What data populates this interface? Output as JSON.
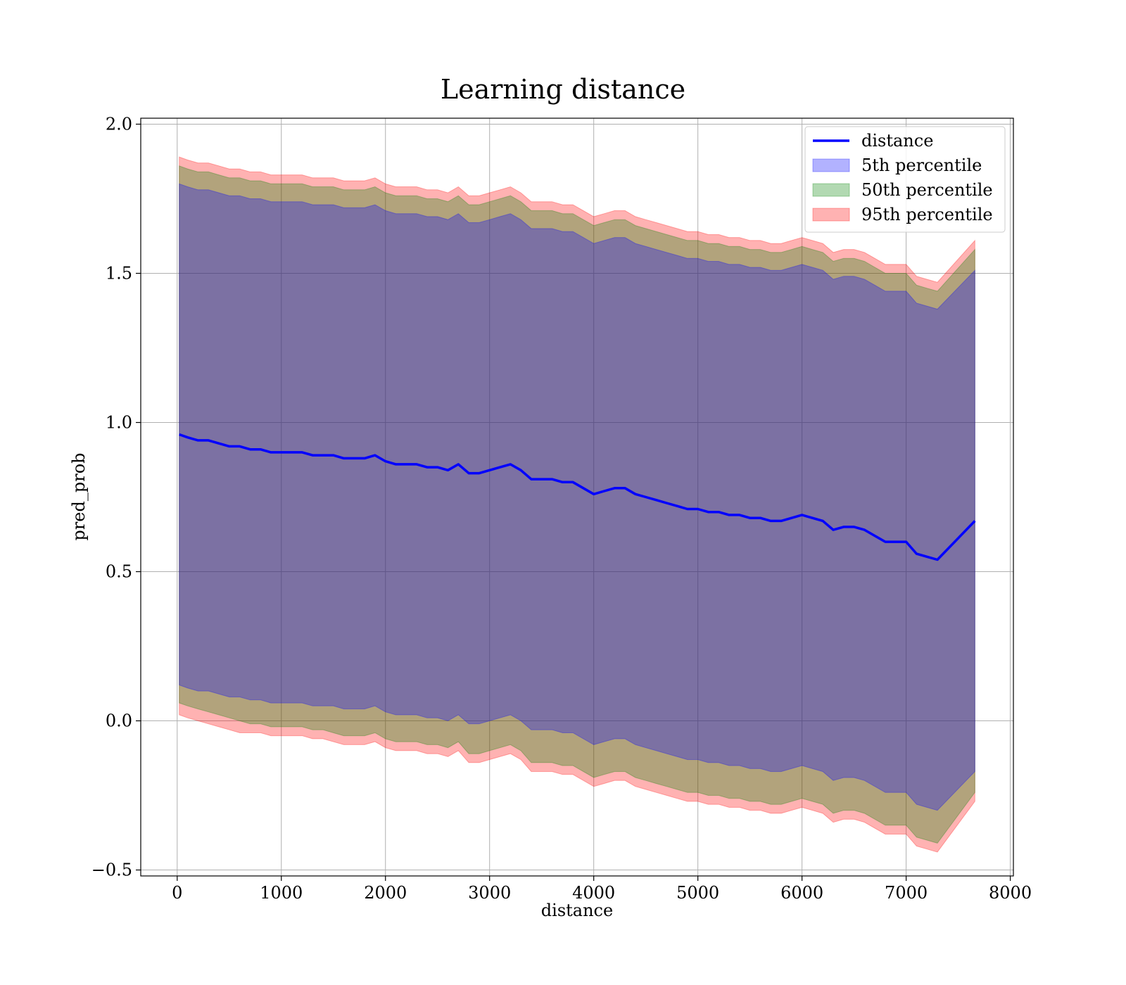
{
  "chart_data": {
    "type": "area",
    "title": "Learning distance",
    "xlabel": "distance",
    "ylabel": "pred_prob",
    "xlim": [
      -350,
      8030
    ],
    "ylim": [
      -0.52,
      2.02
    ],
    "x_ticks": [
      0,
      1000,
      2000,
      3000,
      4000,
      5000,
      6000,
      7000,
      8000
    ],
    "x_tick_labels": [
      "0",
      "1000",
      "2000",
      "3000",
      "4000",
      "5000",
      "6000",
      "7000",
      "8000"
    ],
    "y_ticks": [
      -0.5,
      0.0,
      0.5,
      1.0,
      1.5,
      2.0
    ],
    "y_tick_labels": [
      "−0.5",
      "0.0",
      "0.5",
      "1.0",
      "1.5",
      "2.0"
    ],
    "grid": true,
    "legend_position": "top-right",
    "colors": {
      "line": "#0000ff",
      "p5": "#0000ff",
      "p50": "#008000",
      "p95": "#ff0000"
    },
    "x": [
      20,
      100,
      200,
      300,
      400,
      500,
      600,
      700,
      800,
      900,
      1000,
      1100,
      1200,
      1300,
      1400,
      1500,
      1600,
      1700,
      1800,
      1900,
      2000,
      2100,
      2200,
      2300,
      2400,
      2500,
      2600,
      2700,
      2800,
      2900,
      3000,
      3100,
      3200,
      3300,
      3400,
      3500,
      3600,
      3700,
      3800,
      3900,
      4000,
      4100,
      4200,
      4300,
      4400,
      4500,
      4600,
      4700,
      4800,
      4900,
      5000,
      5100,
      5200,
      5300,
      5400,
      5500,
      5600,
      5700,
      5800,
      5900,
      6000,
      6100,
      6200,
      6300,
      6400,
      6500,
      6600,
      6700,
      6800,
      6900,
      7000,
      7100,
      7200,
      7300,
      7660
    ],
    "series": [
      {
        "name": "distance",
        "kind": "line",
        "values": [
          0.96,
          0.95,
          0.94,
          0.94,
          0.93,
          0.92,
          0.92,
          0.91,
          0.91,
          0.9,
          0.9,
          0.9,
          0.9,
          0.89,
          0.89,
          0.89,
          0.88,
          0.88,
          0.88,
          0.89,
          0.87,
          0.86,
          0.86,
          0.86,
          0.85,
          0.85,
          0.84,
          0.86,
          0.83,
          0.83,
          0.84,
          0.85,
          0.86,
          0.84,
          0.81,
          0.81,
          0.81,
          0.8,
          0.8,
          0.78,
          0.76,
          0.77,
          0.78,
          0.78,
          0.76,
          0.75,
          0.74,
          0.73,
          0.72,
          0.71,
          0.71,
          0.7,
          0.7,
          0.69,
          0.69,
          0.68,
          0.68,
          0.67,
          0.67,
          0.68,
          0.69,
          0.68,
          0.67,
          0.64,
          0.65,
          0.65,
          0.64,
          0.62,
          0.6,
          0.6,
          0.6,
          0.56,
          0.55,
          0.54,
          0.67
        ]
      },
      {
        "name": "5th percentile",
        "kind": "band",
        "lower": [
          0.12,
          0.11,
          0.1,
          0.1,
          0.09,
          0.08,
          0.08,
          0.07,
          0.07,
          0.06,
          0.06,
          0.06,
          0.06,
          0.05,
          0.05,
          0.05,
          0.04,
          0.04,
          0.04,
          0.05,
          0.03,
          0.02,
          0.02,
          0.02,
          0.01,
          0.01,
          0.0,
          0.02,
          -0.01,
          -0.01,
          0.0,
          0.01,
          0.02,
          0.0,
          -0.03,
          -0.03,
          -0.03,
          -0.04,
          -0.04,
          -0.06,
          -0.08,
          -0.07,
          -0.06,
          -0.06,
          -0.08,
          -0.09,
          -0.1,
          -0.11,
          -0.12,
          -0.13,
          -0.13,
          -0.14,
          -0.14,
          -0.15,
          -0.15,
          -0.16,
          -0.16,
          -0.17,
          -0.17,
          -0.16,
          -0.15,
          -0.16,
          -0.17,
          -0.2,
          -0.19,
          -0.19,
          -0.2,
          -0.22,
          -0.24,
          -0.24,
          -0.24,
          -0.28,
          -0.29,
          -0.3,
          -0.17
        ],
        "upper": [
          1.8,
          1.79,
          1.78,
          1.78,
          1.77,
          1.76,
          1.76,
          1.75,
          1.75,
          1.74,
          1.74,
          1.74,
          1.74,
          1.73,
          1.73,
          1.73,
          1.72,
          1.72,
          1.72,
          1.73,
          1.71,
          1.7,
          1.7,
          1.7,
          1.69,
          1.69,
          1.68,
          1.7,
          1.67,
          1.67,
          1.68,
          1.69,
          1.7,
          1.68,
          1.65,
          1.65,
          1.65,
          1.64,
          1.64,
          1.62,
          1.6,
          1.61,
          1.62,
          1.62,
          1.6,
          1.59,
          1.58,
          1.57,
          1.56,
          1.55,
          1.55,
          1.54,
          1.54,
          1.53,
          1.53,
          1.52,
          1.52,
          1.51,
          1.51,
          1.52,
          1.53,
          1.52,
          1.51,
          1.48,
          1.49,
          1.49,
          1.48,
          1.46,
          1.44,
          1.44,
          1.44,
          1.4,
          1.39,
          1.38,
          1.51
        ]
      },
      {
        "name": "50th percentile",
        "kind": "band",
        "lower": [
          0.06,
          0.05,
          0.04,
          0.03,
          0.02,
          0.01,
          0.0,
          -0.01,
          -0.01,
          -0.02,
          -0.02,
          -0.02,
          -0.02,
          -0.03,
          -0.03,
          -0.04,
          -0.05,
          -0.05,
          -0.05,
          -0.04,
          -0.06,
          -0.07,
          -0.07,
          -0.07,
          -0.08,
          -0.08,
          -0.09,
          -0.07,
          -0.11,
          -0.11,
          -0.1,
          -0.09,
          -0.08,
          -0.1,
          -0.14,
          -0.14,
          -0.14,
          -0.15,
          -0.15,
          -0.17,
          -0.19,
          -0.18,
          -0.17,
          -0.17,
          -0.19,
          -0.2,
          -0.21,
          -0.22,
          -0.23,
          -0.24,
          -0.24,
          -0.25,
          -0.25,
          -0.26,
          -0.26,
          -0.27,
          -0.27,
          -0.28,
          -0.28,
          -0.27,
          -0.26,
          -0.27,
          -0.28,
          -0.31,
          -0.3,
          -0.3,
          -0.31,
          -0.33,
          -0.35,
          -0.35,
          -0.35,
          -0.39,
          -0.4,
          -0.41,
          -0.24
        ],
        "upper": [
          1.86,
          1.85,
          1.84,
          1.84,
          1.83,
          1.82,
          1.82,
          1.81,
          1.81,
          1.8,
          1.8,
          1.8,
          1.8,
          1.79,
          1.79,
          1.79,
          1.78,
          1.78,
          1.78,
          1.79,
          1.77,
          1.76,
          1.76,
          1.76,
          1.75,
          1.75,
          1.74,
          1.76,
          1.73,
          1.73,
          1.74,
          1.75,
          1.76,
          1.74,
          1.71,
          1.71,
          1.71,
          1.7,
          1.7,
          1.68,
          1.66,
          1.67,
          1.68,
          1.68,
          1.66,
          1.65,
          1.64,
          1.63,
          1.62,
          1.61,
          1.61,
          1.6,
          1.6,
          1.59,
          1.59,
          1.58,
          1.58,
          1.57,
          1.57,
          1.58,
          1.59,
          1.58,
          1.57,
          1.54,
          1.55,
          1.55,
          1.54,
          1.52,
          1.5,
          1.5,
          1.5,
          1.46,
          1.45,
          1.44,
          1.58
        ]
      },
      {
        "name": "95th percentile",
        "kind": "band",
        "lower": [
          0.02,
          0.01,
          0.0,
          -0.01,
          -0.02,
          -0.03,
          -0.04,
          -0.04,
          -0.04,
          -0.05,
          -0.05,
          -0.05,
          -0.05,
          -0.06,
          -0.06,
          -0.07,
          -0.08,
          -0.08,
          -0.08,
          -0.07,
          -0.09,
          -0.1,
          -0.1,
          -0.1,
          -0.11,
          -0.11,
          -0.12,
          -0.1,
          -0.14,
          -0.14,
          -0.13,
          -0.12,
          -0.11,
          -0.13,
          -0.17,
          -0.17,
          -0.17,
          -0.18,
          -0.18,
          -0.2,
          -0.22,
          -0.21,
          -0.2,
          -0.2,
          -0.22,
          -0.23,
          -0.24,
          -0.25,
          -0.26,
          -0.27,
          -0.27,
          -0.28,
          -0.28,
          -0.29,
          -0.29,
          -0.3,
          -0.3,
          -0.31,
          -0.31,
          -0.3,
          -0.29,
          -0.3,
          -0.31,
          -0.34,
          -0.33,
          -0.33,
          -0.34,
          -0.36,
          -0.38,
          -0.38,
          -0.38,
          -0.42,
          -0.43,
          -0.44,
          -0.27
        ],
        "upper": [
          1.89,
          1.88,
          1.87,
          1.87,
          1.86,
          1.85,
          1.85,
          1.84,
          1.84,
          1.83,
          1.83,
          1.83,
          1.83,
          1.82,
          1.82,
          1.82,
          1.81,
          1.81,
          1.81,
          1.82,
          1.8,
          1.79,
          1.79,
          1.79,
          1.78,
          1.78,
          1.77,
          1.79,
          1.76,
          1.76,
          1.77,
          1.78,
          1.79,
          1.77,
          1.74,
          1.74,
          1.74,
          1.73,
          1.73,
          1.71,
          1.69,
          1.7,
          1.71,
          1.71,
          1.69,
          1.68,
          1.67,
          1.66,
          1.65,
          1.64,
          1.64,
          1.63,
          1.63,
          1.62,
          1.62,
          1.61,
          1.61,
          1.6,
          1.6,
          1.61,
          1.62,
          1.61,
          1.6,
          1.57,
          1.58,
          1.58,
          1.57,
          1.55,
          1.53,
          1.53,
          1.53,
          1.49,
          1.48,
          1.47,
          1.61
        ]
      }
    ]
  }
}
